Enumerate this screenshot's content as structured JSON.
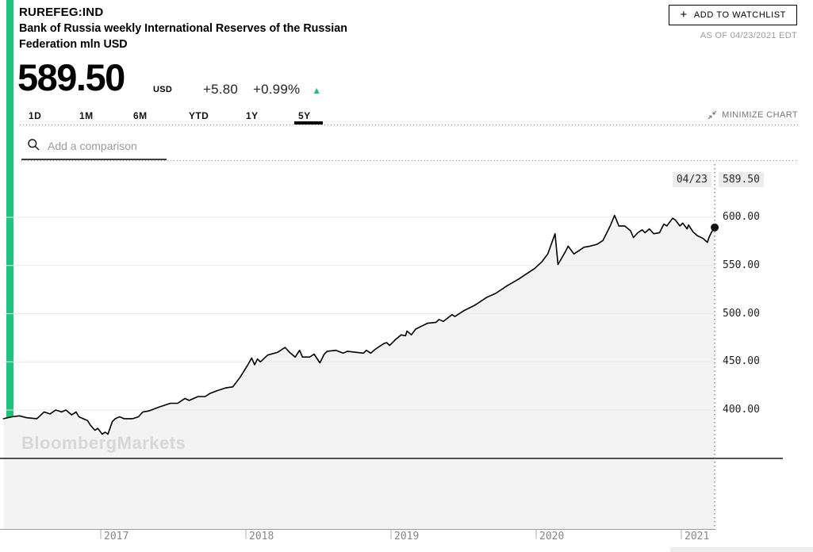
{
  "header": {
    "symbol": "RUREFEG:IND",
    "description": "Bank of Russia weekly International Reserves of the Russian Federation mln USD",
    "watchlist_label": "ADD TO WATCHLIST",
    "as_of": "AS OF 04/23/2021 EDT"
  },
  "price": {
    "value": "589.50",
    "currency": "USD",
    "change": "+5.80",
    "change_pct": "+0.99%",
    "direction": "up"
  },
  "range_tabs": {
    "items": [
      "1D",
      "1M",
      "6M",
      "YTD",
      "1Y",
      "5Y"
    ],
    "selected": "5Y"
  },
  "chart_controls": {
    "minimize_label": "MINIMIZE CHART"
  },
  "comparison": {
    "placeholder": "Add a comparison"
  },
  "tooltip": {
    "date": "04/23",
    "value": "589.50"
  },
  "watermark": "BloombergMarkets",
  "icons": {
    "plus": "+",
    "up_triangle": "▲",
    "search": "magnifier",
    "minimize": "collapse-arrows"
  },
  "colors": {
    "accent_green": "#1fc47c",
    "line": "#000000",
    "area_fill": "#f3f3f3",
    "grid": "#e9e9e9",
    "dark_rule": "#1a1a1a",
    "axis_line": "#9a9a9a",
    "tick": "#bbbbbb",
    "crosshair": "#555555",
    "tooltip_bg": "#ececec",
    "axis_text": "#868686",
    "muted_text": "#757575",
    "as_of_text": "#9b9b9b",
    "watermark_text": "#d7d7d7"
  },
  "chart_data": {
    "type": "line",
    "title": "RUREFEG:IND — Bank of Russia weekly International Reserves of the Russian Federation mln USD",
    "range_selected": "5Y",
    "grid": true,
    "legend": false,
    "yaxis_side": "right",
    "x_range": [
      2016.33,
      2021.23
    ],
    "ylim": [
      277,
      657
    ],
    "x_ticks": {
      "years": [
        2017,
        2018,
        2019,
        2020,
        2021
      ],
      "labels": [
        "2017",
        "2018",
        "2019",
        "2020",
        "2021"
      ]
    },
    "y_ticks": {
      "values": [
        600,
        550,
        500,
        450,
        400
      ],
      "labels": [
        "600.00",
        "550.00",
        "500.00",
        "450.00",
        "400.00"
      ]
    },
    "last_point": {
      "date": "04/23",
      "value": 589.5
    },
    "series": [
      {
        "name": "RUREFEG:IND",
        "points": [
          [
            2016.33,
            391
          ],
          [
            2016.39,
            393
          ],
          [
            2016.44,
            394
          ],
          [
            2016.49,
            392
          ],
          [
            2016.56,
            391
          ],
          [
            2016.61,
            398
          ],
          [
            2016.65,
            396
          ],
          [
            2016.69,
            400
          ],
          [
            2016.73,
            398
          ],
          [
            2016.76,
            400
          ],
          [
            2016.8,
            395
          ],
          [
            2016.83,
            398
          ],
          [
            2016.85,
            393
          ],
          [
            2016.91,
            389
          ],
          [
            2016.93,
            384
          ],
          [
            2016.96,
            379
          ],
          [
            2016.98,
            381
          ],
          [
            2017.01,
            375
          ],
          [
            2017.03,
            377
          ],
          [
            2017.05,
            375
          ],
          [
            2017.08,
            388
          ],
          [
            2017.1,
            391
          ],
          [
            2017.13,
            393
          ],
          [
            2017.16,
            391
          ],
          [
            2017.22,
            391
          ],
          [
            2017.26,
            393
          ],
          [
            2017.29,
            398
          ],
          [
            2017.33,
            399
          ],
          [
            2017.4,
            403
          ],
          [
            2017.48,
            407
          ],
          [
            2017.53,
            407
          ],
          [
            2017.58,
            412
          ],
          [
            2017.61,
            410
          ],
          [
            2017.67,
            414
          ],
          [
            2017.72,
            414
          ],
          [
            2017.75,
            417
          ],
          [
            2017.8,
            420
          ],
          [
            2017.86,
            423
          ],
          [
            2017.91,
            424
          ],
          [
            2017.93,
            428
          ],
          [
            2017.96,
            434
          ],
          [
            2018.01,
            446
          ],
          [
            2018.04,
            454
          ],
          [
            2018.06,
            447
          ],
          [
            2018.08,
            453
          ],
          [
            2018.1,
            450
          ],
          [
            2018.15,
            457
          ],
          [
            2018.22,
            460
          ],
          [
            2018.27,
            465
          ],
          [
            2018.3,
            460
          ],
          [
            2018.34,
            455
          ],
          [
            2018.37,
            462
          ],
          [
            2018.39,
            455
          ],
          [
            2018.44,
            455
          ],
          [
            2018.47,
            458
          ],
          [
            2018.51,
            449
          ],
          [
            2018.54,
            458
          ],
          [
            2018.56,
            461
          ],
          [
            2018.62,
            462
          ],
          [
            2018.67,
            459
          ],
          [
            2018.7,
            461
          ],
          [
            2018.75,
            460
          ],
          [
            2018.81,
            459
          ],
          [
            2018.83,
            462
          ],
          [
            2018.86,
            459
          ],
          [
            2018.89,
            463
          ],
          [
            2018.95,
            469
          ],
          [
            2018.97,
            470
          ],
          [
            2018.99,
            467
          ],
          [
            2019.03,
            473
          ],
          [
            2019.07,
            478
          ],
          [
            2019.1,
            477
          ],
          [
            2019.11,
            482
          ],
          [
            2019.14,
            478
          ],
          [
            2019.17,
            484
          ],
          [
            2019.21,
            487
          ],
          [
            2019.25,
            490
          ],
          [
            2019.31,
            491
          ],
          [
            2019.33,
            494
          ],
          [
            2019.36,
            492
          ],
          [
            2019.42,
            499
          ],
          [
            2019.44,
            497
          ],
          [
            2019.5,
            503
          ],
          [
            2019.58,
            509
          ],
          [
            2019.66,
            517
          ],
          [
            2019.72,
            521
          ],
          [
            2019.8,
            529
          ],
          [
            2019.88,
            536
          ],
          [
            2019.93,
            541
          ],
          [
            2019.99,
            547
          ],
          [
            2020.04,
            554
          ],
          [
            2020.08,
            562
          ],
          [
            2020.13,
            583
          ],
          [
            2020.15,
            551
          ],
          [
            2020.2,
            564
          ],
          [
            2020.22,
            570
          ],
          [
            2020.26,
            562
          ],
          [
            2020.33,
            569
          ],
          [
            2020.37,
            570
          ],
          [
            2020.42,
            572
          ],
          [
            2020.46,
            576
          ],
          [
            2020.51,
            591
          ],
          [
            2020.54,
            602
          ],
          [
            2020.57,
            591
          ],
          [
            2020.61,
            591
          ],
          [
            2020.65,
            586
          ],
          [
            2020.67,
            579
          ],
          [
            2020.7,
            584
          ],
          [
            2020.73,
            587
          ],
          [
            2020.75,
            584
          ],
          [
            2020.78,
            588
          ],
          [
            2020.81,
            583
          ],
          [
            2020.85,
            584
          ],
          [
            2020.88,
            593
          ],
          [
            2020.9,
            591
          ],
          [
            2020.94,
            599
          ],
          [
            2020.96,
            597
          ],
          [
            2020.99,
            591
          ],
          [
            2021.01,
            594
          ],
          [
            2021.04,
            588
          ],
          [
            2021.05,
            592
          ],
          [
            2021.08,
            585
          ],
          [
            2021.11,
            581
          ],
          [
            2021.15,
            578
          ],
          [
            2021.18,
            574
          ],
          [
            2021.19,
            579
          ],
          [
            2021.21,
            585
          ],
          [
            2021.23,
            589.5
          ]
        ]
      }
    ]
  }
}
